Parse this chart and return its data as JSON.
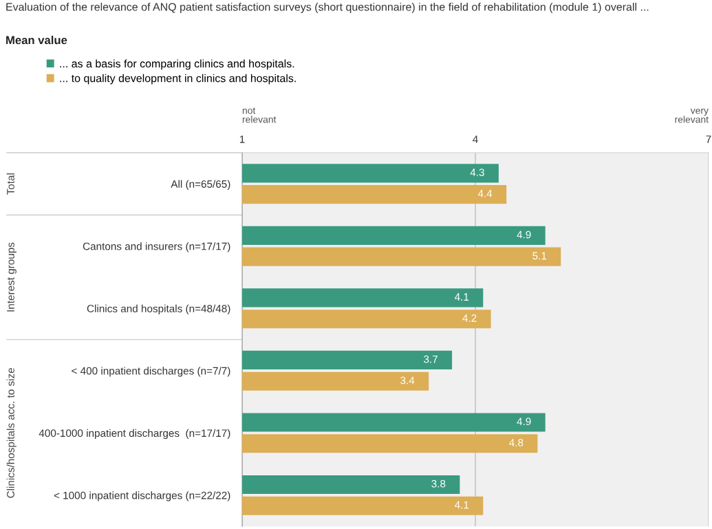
{
  "chart_data": {
    "type": "bar",
    "orientation": "horizontal",
    "title": "Evaluation of the relevance of ANQ patient satisfaction surveys (short questionnaire) in the field of rehabilitation (module 1) overall ...",
    "subtitle": "Mean value",
    "categories": [
      "All (n=65/65)",
      "Cantons and insurers (n=17/17)",
      "Clinics and hospitals (n=48/48)",
      "< 400 inpatient discharges (n=7/7)",
      "400-1000 inpatient discharges  (n=17/17)",
      "< 1000 inpatient discharges (n=22/22)"
    ],
    "series": [
      {
        "name": "... as a basis for comparing clinics and hospitals.",
        "color": "#3a9a80",
        "values": [
          4.3,
          4.9,
          4.1,
          3.7,
          4.9,
          3.8
        ]
      },
      {
        "name": "... to quality development in clinics and hospitals.",
        "color": "#dcae55",
        "values": [
          4.4,
          5.1,
          4.2,
          3.4,
          4.8,
          4.1
        ]
      }
    ],
    "xlim": [
      1,
      7
    ],
    "xticks": [
      1,
      4,
      7
    ],
    "grid": "x",
    "legend": "top left",
    "data_labels": true,
    "annotations": [
      "not\nrelevant",
      "very\nrelevant",
      "Total",
      "Interest groups",
      "Clinics/hospitals acc. to size"
    ]
  }
}
